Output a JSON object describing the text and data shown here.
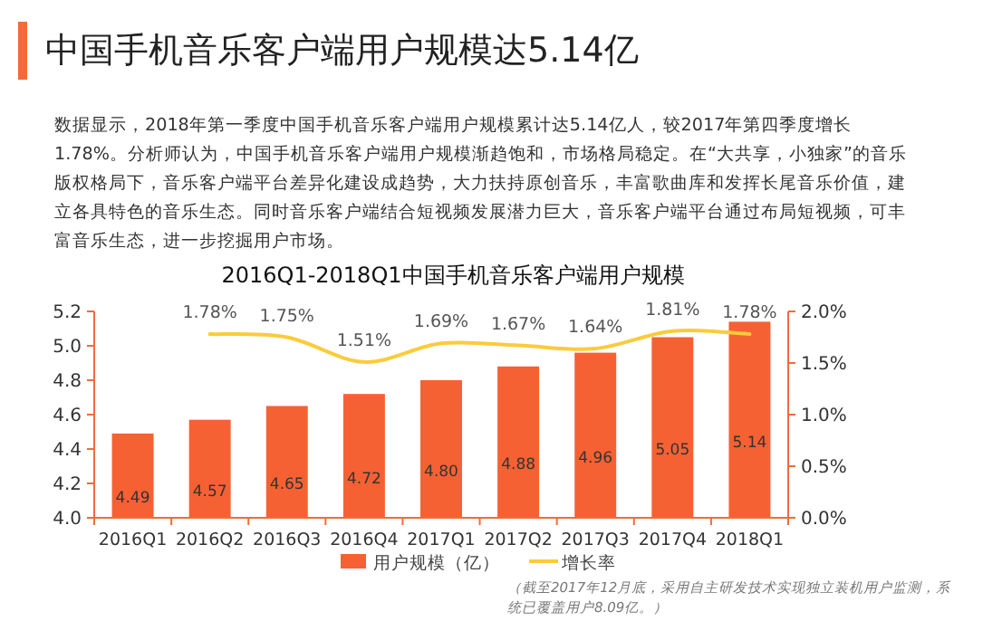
{
  "chart_data": {
    "type": "bar",
    "title": "2016Q1-2018Q1中国手机音乐客户端用户规模",
    "annotations": [
      "中国手机音乐客户端用户规模达5.14亿",
      "数据显示，2018年第一季度中国手机音乐客户端用户规模累计达5.14亿人，较2017年第四季度增长1.78%。分析师认为，中国手机音乐客户端用户规模渐趋饱和，市场格局稳定。在“大共享，小独家”的音乐版权格局下，音乐客户端平台差异化建设成趋势，大力扶持原创音乐，丰富歌曲库和发挥长尾音乐价值，建立各具特色的音乐生态。同时音乐客户端结合短视频发展潜力巨大，音乐客户端平台通过布局短视频，可丰富音乐生态，进一步挖掘用户市场。",
      "（截至2017年12月底，采用自主研发技术实现独立装机用户监测，系统已覆盖用户8.09亿。）"
    ],
    "categories": [
      "2016Q1",
      "2016Q2",
      "2016Q3",
      "2016Q4",
      "2017Q1",
      "2017Q2",
      "2017Q3",
      "2017Q4",
      "2018Q1"
    ],
    "series": [
      {
        "name": "用户规模（亿）",
        "color": "#f66133",
        "values": [
          4.49,
          4.57,
          4.65,
          4.72,
          4.8,
          4.88,
          4.96,
          5.05,
          5.14
        ],
        "value_labels": [
          "4.49",
          "4.57",
          "4.65",
          "4.72",
          "4.80",
          "4.88",
          "4.96",
          "5.05",
          "5.14"
        ]
      },
      {
        "name": "增长率",
        "type": "line",
        "axis": "y2",
        "color": "#fbcb3b",
        "values": [
          null,
          1.78,
          1.75,
          1.51,
          1.69,
          1.67,
          1.64,
          1.81,
          1.78
        ],
        "value_labels": [
          null,
          "1.78%",
          "1.75%",
          "1.51%",
          "1.69%",
          "1.67%",
          "1.64%",
          "1.81%",
          "1.78%"
        ]
      }
    ],
    "ylim": [
      4.0,
      5.2
    ],
    "yticks": [
      {
        "value": 4.0,
        "label": "4.0"
      },
      {
        "value": 4.2,
        "label": "4.2"
      },
      {
        "value": 4.4,
        "label": "4.4"
      },
      {
        "value": 4.6,
        "label": "4.6"
      },
      {
        "value": 4.8,
        "label": "4.8"
      },
      {
        "value": 5.0,
        "label": "5.0"
      },
      {
        "value": 5.2,
        "label": "5.2"
      }
    ],
    "y2lim": [
      0,
      2.0
    ],
    "y2ticks": [
      {
        "value": 0,
        "label": "0.0%"
      },
      {
        "value": 0.5,
        "label": "0.5%"
      },
      {
        "value": 1.0,
        "label": "1.0%"
      },
      {
        "value": 1.5,
        "label": "1.5%"
      },
      {
        "value": 2.0,
        "label": "2.0%"
      }
    ],
    "legend": "bottom",
    "grid": false
  }
}
